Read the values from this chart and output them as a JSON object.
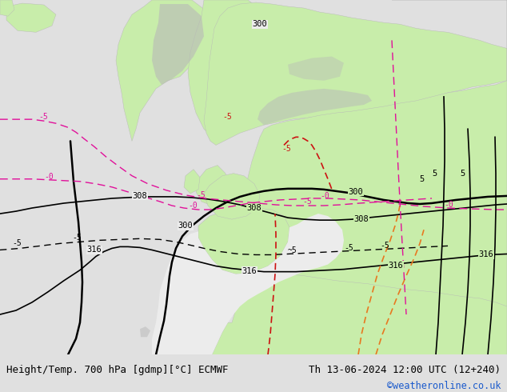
{
  "title_left": "Height/Temp. 700 hPa [gdmp][°C] ECMWF",
  "title_right": "Th 13-06-2024 12:00 UTC (12+240)",
  "credit": "©weatheronline.co.uk",
  "bg_color": "#e0e0e0",
  "ocean_color": "#ececec",
  "land_green": "#c8edaa",
  "land_gray": "#b8b8b8",
  "sea_color": "#f0f0f0",
  "contour_black": "#000000",
  "contour_pink": "#e0109a",
  "contour_red": "#cc1111",
  "contour_orange": "#e87820",
  "credit_color": "#1a5acc",
  "bottom_bar_color": "#d4d4d4",
  "title_fontsize": 9.0,
  "credit_fontsize": 8.5
}
